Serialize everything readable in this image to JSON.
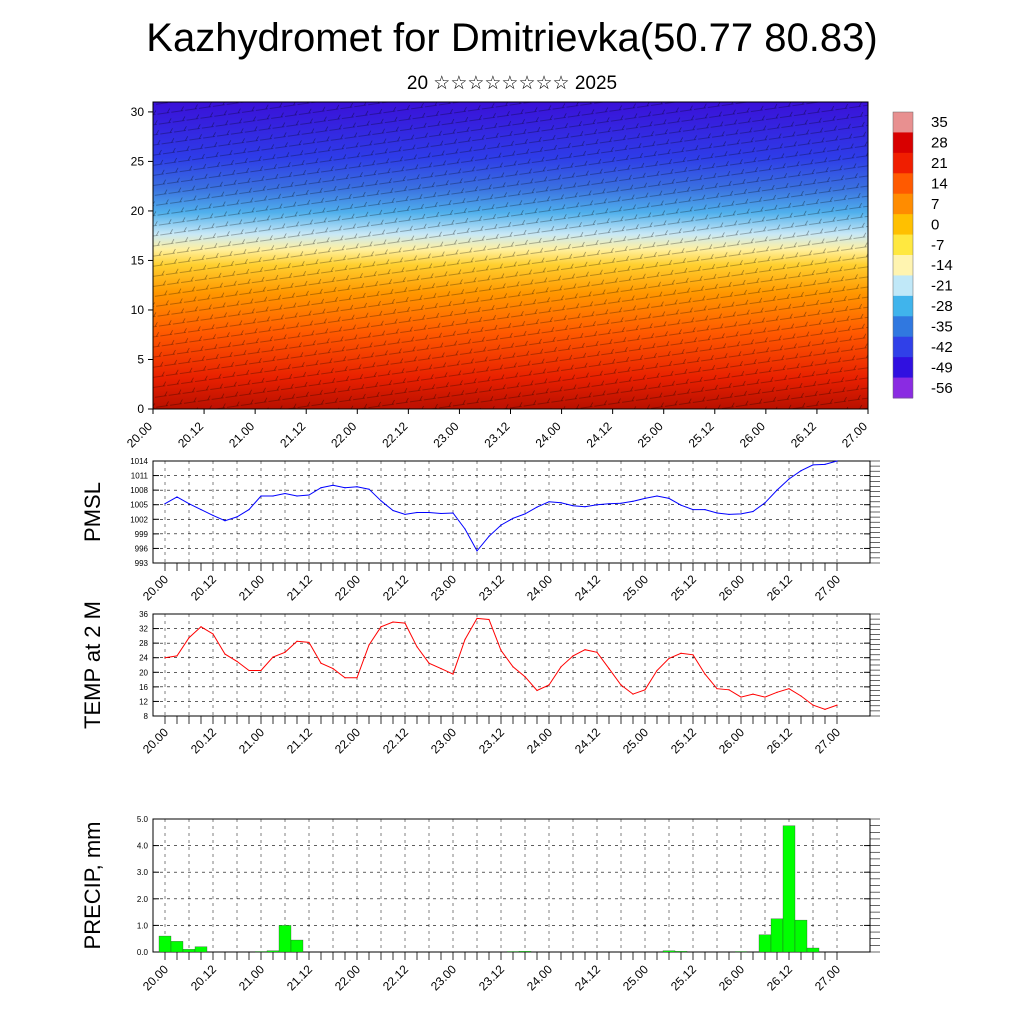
{
  "title": "Kazhydromet for Dmitrievka(50.77 80.83)",
  "subtitle": "20 ☆☆☆☆☆☆☆☆ 2025",
  "chart_data": [
    {
      "type": "heatmap",
      "name": "vertical-cross-section",
      "y_ticks": [
        "0",
        "5",
        "10",
        "15",
        "20",
        "25",
        "30"
      ],
      "ylim": [
        0,
        31
      ],
      "x_ticks": [
        "20.00",
        "20.12",
        "21.00",
        "21.12",
        "22.00",
        "22.12",
        "23.00",
        "23.12",
        "24.00",
        "24.12",
        "25.00",
        "25.12",
        "26.00",
        "26.12",
        "27.00"
      ],
      "colorbar": {
        "labels": [
          "35",
          "28",
          "21",
          "14",
          "7",
          "0",
          "-7",
          "-14",
          "-21",
          "-28",
          "-35",
          "-42",
          "-49",
          "-56"
        ],
        "colors": [
          "#e89090",
          "#d80000",
          "#f01e00",
          "#ff5a00",
          "#ff8c00",
          "#ffc000",
          "#ffe840",
          "#fff4b0",
          "#c0e8f8",
          "#40b4ec",
          "#3078e0",
          "#3040e8",
          "#3010e0",
          "#8a2be2"
        ]
      },
      "grid": false
    },
    {
      "type": "line",
      "name": "pmsl",
      "ylabel": "PMSL",
      "ylim": [
        993,
        1014
      ],
      "y_ticks": [
        "993",
        "996",
        "999",
        "1002",
        "1005",
        "1008",
        "1011",
        "1014"
      ],
      "x_ticks": [
        "20.00",
        "20.12",
        "21.00",
        "21.12",
        "22.00",
        "22.12",
        "23.00",
        "23.12",
        "24.00",
        "24.12",
        "25.00",
        "25.12",
        "26.00",
        "26.12",
        "27.00"
      ],
      "color": "#0000ff",
      "grid": true,
      "x": [
        0,
        3,
        6,
        9,
        12,
        15,
        18,
        21,
        24,
        27,
        30,
        33,
        36,
        39,
        42,
        45,
        48,
        51,
        54,
        57,
        60,
        63,
        66,
        69,
        72,
        75,
        78,
        81,
        84,
        87,
        90,
        93,
        96,
        99,
        102,
        105,
        108,
        111,
        114,
        117,
        120,
        123,
        126,
        129,
        132,
        135,
        138,
        141,
        144,
        147,
        150,
        153,
        156,
        159,
        162,
        165,
        168
      ],
      "values": [
        1005.2,
        1006.6,
        1005.2,
        1004.0,
        1002.8,
        1001.7,
        1002.5,
        1004.0,
        1006.8,
        1006.8,
        1007.3,
        1006.8,
        1007.0,
        1008.5,
        1009.0,
        1008.5,
        1008.7,
        1008.2,
        1005.8,
        1003.8,
        1003.0,
        1003.4,
        1003.4,
        1003.2,
        1003.3,
        1000.0,
        995.5,
        998.5,
        1000.8,
        1002.2,
        1003.1,
        1004.5,
        1005.6,
        1005.4,
        1004.8,
        1004.6,
        1005.0,
        1005.2,
        1005.3,
        1005.7,
        1006.3,
        1006.8,
        1006.3,
        1004.9,
        1004.0,
        1004.0,
        1003.3,
        1003.0,
        1003.1,
        1003.6,
        1005.4,
        1008.0,
        1010.3,
        1012.0,
        1013.2,
        1013.3,
        1014.0
      ]
    },
    {
      "type": "line",
      "name": "temp-2m",
      "ylabel": "TEMP at 2 M",
      "ylim": [
        8,
        36
      ],
      "y_ticks": [
        "8",
        "12",
        "16",
        "20",
        "24",
        "28",
        "32",
        "36"
      ],
      "x_ticks": [
        "20.00",
        "20.12",
        "21.00",
        "21.12",
        "22.00",
        "22.12",
        "23.00",
        "23.12",
        "24.00",
        "24.12",
        "25.00",
        "25.12",
        "26.00",
        "26.12",
        "27.00"
      ],
      "color": "#ff0000",
      "grid": true,
      "x": [
        0,
        3,
        6,
        9,
        12,
        15,
        18,
        21,
        24,
        27,
        30,
        33,
        36,
        39,
        42,
        45,
        48,
        51,
        54,
        57,
        60,
        63,
        66,
        69,
        72,
        75,
        78,
        81,
        84,
        87,
        90,
        93,
        96,
        99,
        102,
        105,
        108,
        111,
        114,
        117,
        120,
        123,
        126,
        129,
        132,
        135,
        138,
        141,
        144,
        147,
        150,
        153,
        156,
        159,
        162,
        165,
        168
      ],
      "values": [
        24,
        24.5,
        29.5,
        32.5,
        30.5,
        25,
        23,
        20.5,
        20.5,
        24.2,
        25.5,
        28.5,
        28.2,
        22.5,
        21,
        18.5,
        18.5,
        27.5,
        32.5,
        33.8,
        33.5,
        27,
        22.5,
        21,
        19.5,
        29,
        34.8,
        34.5,
        26,
        21.5,
        18.8,
        15,
        16.5,
        21.5,
        24.5,
        26.2,
        25.5,
        21,
        16.5,
        14,
        15.2,
        20.5,
        23.8,
        25.2,
        24.8,
        19.5,
        15.5,
        15.2,
        13.2,
        14,
        13.2,
        14.5,
        15.5,
        13.5,
        11,
        9.8,
        11
      ]
    },
    {
      "type": "bar",
      "name": "precip",
      "ylabel": "PRECIP, mm",
      "ylim": [
        0,
        5
      ],
      "y_ticks": [
        "0.0",
        "1.0",
        "2.0",
        "3.0",
        "4.0",
        "5.0"
      ],
      "x_ticks": [
        "20.00",
        "20.12",
        "21.00",
        "21.12",
        "22.00",
        "22.12",
        "23.00",
        "23.12",
        "24.00",
        "24.12",
        "25.00",
        "25.12",
        "26.00",
        "26.12",
        "27.00"
      ],
      "color": "#00ff00",
      "grid": true,
      "x": [
        0,
        3,
        6,
        9,
        12,
        15,
        18,
        21,
        24,
        27,
        30,
        33,
        36,
        39,
        42,
        45,
        48,
        51,
        54,
        57,
        60,
        63,
        66,
        69,
        72,
        75,
        78,
        81,
        84,
        87,
        90,
        93,
        96,
        99,
        102,
        105,
        108,
        111,
        114,
        117,
        120,
        123,
        126,
        129,
        132,
        135,
        138,
        141,
        144,
        147,
        150,
        153,
        156,
        159,
        162,
        165
      ],
      "values": [
        0.6,
        0.4,
        0.1,
        0.2,
        0,
        0,
        0,
        0,
        0.02,
        0.05,
        1.0,
        0.45,
        0,
        0,
        0,
        0,
        0,
        0,
        0,
        0,
        0,
        0,
        0,
        0,
        0,
        0,
        0,
        0,
        0,
        0.02,
        0.03,
        0,
        0,
        0,
        0,
        0,
        0,
        0,
        0,
        0,
        0,
        0,
        0.05,
        0.03,
        0,
        0,
        0,
        0,
        0.02,
        0,
        0.65,
        1.25,
        4.75,
        1.2,
        0.15,
        0
      ]
    }
  ]
}
